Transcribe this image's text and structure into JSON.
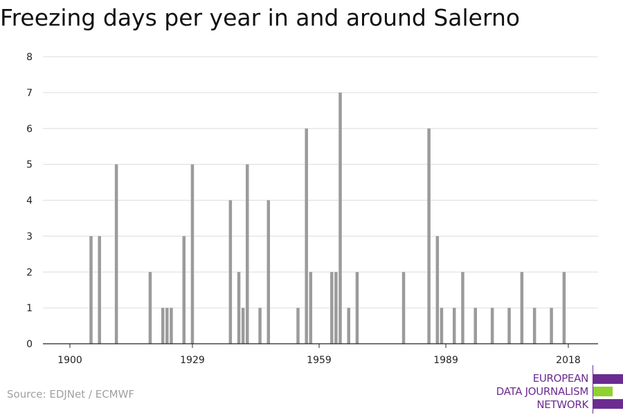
{
  "title": "Freezing days per year in and around Salerno",
  "source": "Source: EDJNet / ECMWF",
  "logo": {
    "lines": [
      "EUROPEAN",
      "DATA JOURNALISM",
      "NETWORK"
    ],
    "color_primary": "#6b2c91",
    "color_accent": "#8fd130"
  },
  "chart_data": {
    "type": "bar",
    "title": "Freezing days per year in and around Salerno",
    "xlabel": "",
    "ylabel": "",
    "xlim": [
      1900,
      2018
    ],
    "ylim": [
      0,
      8
    ],
    "xticks": [
      1900,
      1929,
      1959,
      1989,
      2018
    ],
    "yticks": [
      0,
      1,
      2,
      3,
      4,
      5,
      6,
      7,
      8
    ],
    "grid": true,
    "bar_color": "#9b9b9b",
    "x": [
      1905,
      1907,
      1911,
      1919,
      1922,
      1923,
      1924,
      1927,
      1929,
      1938,
      1940,
      1941,
      1942,
      1945,
      1947,
      1954,
      1956,
      1957,
      1962,
      1963,
      1964,
      1966,
      1968,
      1979,
      1985,
      1987,
      1988,
      1991,
      1993,
      1996,
      2000,
      2004,
      2007,
      2010,
      2014,
      2017
    ],
    "values": [
      3,
      3,
      5,
      2,
      1,
      1,
      1,
      3,
      5,
      4,
      2,
      1,
      5,
      1,
      4,
      1,
      6,
      2,
      2,
      2,
      7,
      1,
      2,
      2,
      6,
      3,
      1,
      1,
      2,
      1,
      1,
      1,
      2,
      1,
      1,
      2
    ]
  }
}
